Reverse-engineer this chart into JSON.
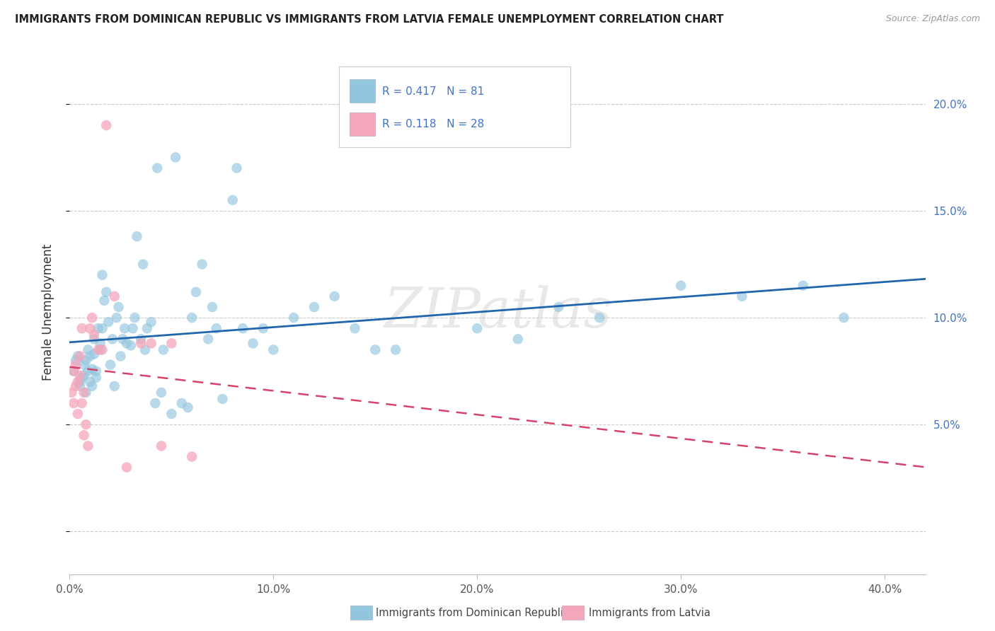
{
  "title": "IMMIGRANTS FROM DOMINICAN REPUBLIC VS IMMIGRANTS FROM LATVIA FEMALE UNEMPLOYMENT CORRELATION CHART",
  "source": "Source: ZipAtlas.com",
  "ylabel": "Female Unemployment",
  "xlim": [
    0.0,
    0.42
  ],
  "ylim": [
    -0.02,
    0.225
  ],
  "yticks": [
    0.0,
    0.05,
    0.1,
    0.15,
    0.2
  ],
  "xticks": [
    0.0,
    0.1,
    0.2,
    0.3,
    0.4
  ],
  "xtick_labels": [
    "0.0%",
    "10.0%",
    "20.0%",
    "30.0%",
    "40.0%"
  ],
  "ytick_labels": [
    "",
    "5.0%",
    "10.0%",
    "15.0%",
    "20.0%"
  ],
  "blue_R": 0.417,
  "blue_N": 81,
  "pink_R": 0.118,
  "pink_N": 28,
  "blue_color": "#92c5de",
  "pink_color": "#f4a6ba",
  "blue_line_color": "#2166ac",
  "pink_line_color": "#d6436a",
  "legend_label_blue": "Immigrants from Dominican Republic",
  "legend_label_pink": "Immigrants from Latvia",
  "blue_x": [
    0.002,
    0.003,
    0.004,
    0.005,
    0.005,
    0.006,
    0.007,
    0.007,
    0.008,
    0.008,
    0.009,
    0.009,
    0.01,
    0.01,
    0.011,
    0.011,
    0.012,
    0.012,
    0.013,
    0.013,
    0.014,
    0.015,
    0.015,
    0.016,
    0.016,
    0.017,
    0.018,
    0.019,
    0.02,
    0.021,
    0.022,
    0.023,
    0.024,
    0.025,
    0.026,
    0.027,
    0.028,
    0.03,
    0.031,
    0.032,
    0.033,
    0.035,
    0.036,
    0.037,
    0.038,
    0.04,
    0.042,
    0.043,
    0.045,
    0.046,
    0.05,
    0.052,
    0.055,
    0.058,
    0.06,
    0.062,
    0.065,
    0.068,
    0.07,
    0.072,
    0.075,
    0.08,
    0.082,
    0.085,
    0.09,
    0.095,
    0.1,
    0.11,
    0.12,
    0.13,
    0.14,
    0.15,
    0.16,
    0.2,
    0.22,
    0.24,
    0.26,
    0.3,
    0.33,
    0.36,
    0.38
  ],
  "blue_y": [
    0.075,
    0.08,
    0.082,
    0.07,
    0.068,
    0.072,
    0.078,
    0.073,
    0.065,
    0.08,
    0.085,
    0.075,
    0.07,
    0.082,
    0.076,
    0.068,
    0.09,
    0.083,
    0.075,
    0.072,
    0.095,
    0.085,
    0.088,
    0.12,
    0.095,
    0.108,
    0.112,
    0.098,
    0.078,
    0.09,
    0.068,
    0.1,
    0.105,
    0.082,
    0.09,
    0.095,
    0.088,
    0.087,
    0.095,
    0.1,
    0.138,
    0.09,
    0.125,
    0.085,
    0.095,
    0.098,
    0.06,
    0.17,
    0.065,
    0.085,
    0.055,
    0.175,
    0.06,
    0.058,
    0.1,
    0.112,
    0.125,
    0.09,
    0.105,
    0.095,
    0.062,
    0.155,
    0.17,
    0.095,
    0.088,
    0.095,
    0.085,
    0.1,
    0.105,
    0.11,
    0.095,
    0.085,
    0.085,
    0.095,
    0.09,
    0.105,
    0.1,
    0.115,
    0.11,
    0.115,
    0.1
  ],
  "pink_x": [
    0.001,
    0.002,
    0.002,
    0.003,
    0.003,
    0.004,
    0.004,
    0.005,
    0.005,
    0.006,
    0.006,
    0.007,
    0.007,
    0.008,
    0.009,
    0.01,
    0.011,
    0.012,
    0.014,
    0.016,
    0.018,
    0.022,
    0.028,
    0.035,
    0.04,
    0.045,
    0.05,
    0.06
  ],
  "pink_y": [
    0.065,
    0.06,
    0.075,
    0.068,
    0.078,
    0.07,
    0.055,
    0.073,
    0.082,
    0.095,
    0.06,
    0.045,
    0.065,
    0.05,
    0.04,
    0.095,
    0.1,
    0.092,
    0.085,
    0.085,
    0.19,
    0.11,
    0.03,
    0.088,
    0.088,
    0.04,
    0.088,
    0.035
  ],
  "watermark": "ZIPatlas",
  "background_color": "#ffffff",
  "grid_color": "#cccccc"
}
